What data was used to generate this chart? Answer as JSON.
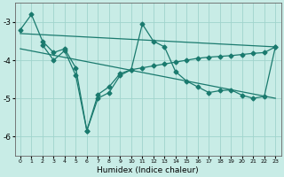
{
  "xlabel": "Humidex (Indice chaleur)",
  "bg_color": "#c8ece6",
  "grid_color": "#a0d4cc",
  "line_color": "#1a7a6e",
  "xlim": [
    -0.5,
    23.5
  ],
  "ylim": [
    -6.5,
    -2.5
  ],
  "yticks": [
    -6,
    -5,
    -4,
    -3
  ],
  "xticks": [
    0,
    1,
    2,
    3,
    4,
    5,
    6,
    7,
    8,
    9,
    10,
    11,
    12,
    13,
    14,
    15,
    16,
    17,
    18,
    19,
    20,
    21,
    22,
    23
  ],
  "series": [
    {
      "x": [
        0,
        1,
        2,
        3,
        4,
        5,
        6,
        7,
        8,
        9,
        10,
        11,
        12,
        13,
        14,
        15,
        16,
        17,
        18,
        19,
        20,
        21,
        22,
        23
      ],
      "y": [
        -3.2,
        -2.8,
        -3.5,
        -3.8,
        -3.7,
        -4.2,
        -5.85,
        -4.9,
        -4.7,
        -4.35,
        -4.25,
        -4.2,
        -4.15,
        -4.1,
        -4.05,
        -4.0,
        -3.95,
        -3.92,
        -3.9,
        -3.88,
        -3.85,
        -3.82,
        -3.8,
        -3.65
      ]
    },
    {
      "x": [
        2,
        3,
        4,
        5,
        6,
        7,
        8,
        9,
        10,
        11,
        12,
        13,
        14,
        15,
        16,
        17,
        18,
        19,
        20,
        21,
        22,
        23
      ],
      "y": [
        -3.6,
        -4.0,
        -3.75,
        -4.4,
        -5.85,
        -5.0,
        -4.85,
        -4.4,
        -4.25,
        -3.05,
        -3.5,
        -3.65,
        -4.3,
        -4.55,
        -4.7,
        -4.85,
        -4.8,
        -4.78,
        -4.92,
        -5.0,
        -4.95,
        -3.65
      ]
    },
    {
      "x": [
        0,
        23
      ],
      "y": [
        -3.3,
        -3.65
      ]
    },
    {
      "x": [
        0,
        23
      ],
      "y": [
        -3.7,
        -5.0
      ]
    }
  ]
}
